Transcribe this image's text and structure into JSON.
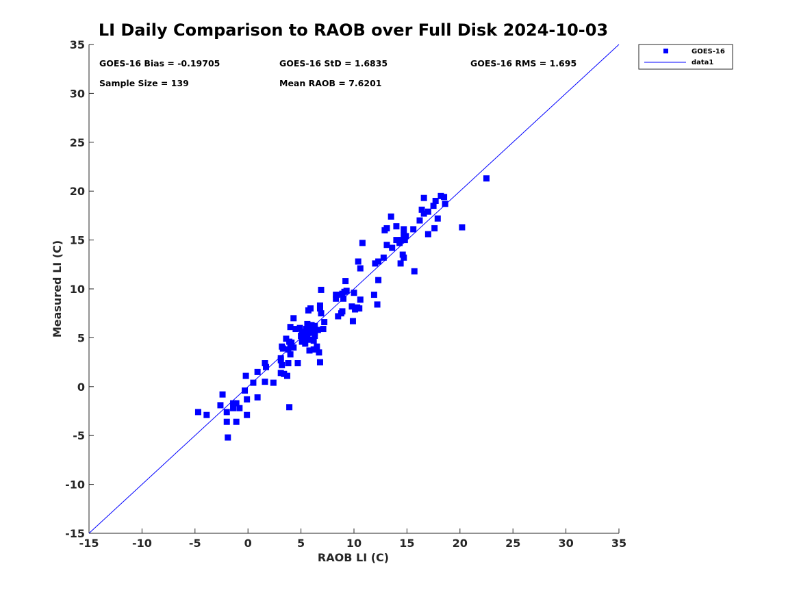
{
  "chart_data": {
    "type": "scatter",
    "title": "LI Daily Comparison to RAOB over Full Disk 2024-10-03",
    "xlabel": "RAOB LI (C)",
    "ylabel": "Measured LI (C)",
    "xlim": [
      -15,
      35
    ],
    "ylim": [
      -15,
      35
    ],
    "xticks": [
      "-15",
      "-10",
      "-5",
      "0",
      "5",
      "10",
      "15",
      "20",
      "25",
      "30",
      "35"
    ],
    "yticks": [
      "-15",
      "-10",
      "-5",
      "0",
      "5",
      "10",
      "15",
      "20",
      "25",
      "30",
      "35"
    ],
    "grid": false,
    "legend": {
      "position": "outside-top-right",
      "entries": [
        "GOES-16",
        "data1"
      ]
    },
    "stats": {
      "bias": "GOES-16 Bias = -0.19705",
      "std": "GOES-16 StD = 1.6835",
      "rms": "GOES-16 RMS = 1.695",
      "sample": "Sample Size = 139",
      "mean_raob": "Mean RAOB = 7.6201"
    },
    "colors": {
      "marker": "#0000ff",
      "line": "#0000ff",
      "axis": "#262626"
    },
    "series": [
      {
        "name": "GOES-16",
        "marker": "square",
        "points": [
          [
            -4.7,
            -2.6
          ],
          [
            -3.9,
            -2.9
          ],
          [
            -2.6,
            -1.9
          ],
          [
            -2.4,
            -0.8
          ],
          [
            -2.0,
            -2.6
          ],
          [
            -2.0,
            -3.6
          ],
          [
            -1.9,
            -5.2
          ],
          [
            -1.4,
            -1.7
          ],
          [
            -1.4,
            -2.2
          ],
          [
            -1.1,
            -1.7
          ],
          [
            -1.1,
            -3.6
          ],
          [
            -0.8,
            -2.2
          ],
          [
            -0.3,
            -0.4
          ],
          [
            -0.2,
            1.1
          ],
          [
            -0.1,
            -1.3
          ],
          [
            -0.1,
            -2.9
          ],
          [
            0.5,
            0.4
          ],
          [
            0.9,
            1.5
          ],
          [
            0.9,
            -1.1
          ],
          [
            1.6,
            0.5
          ],
          [
            1.6,
            2.4
          ],
          [
            1.7,
            2.0
          ],
          [
            2.4,
            0.4
          ],
          [
            3.1,
            1.4
          ],
          [
            3.1,
            2.7
          ],
          [
            3.1,
            2.9
          ],
          [
            3.2,
            2.2
          ],
          [
            3.2,
            4.1
          ],
          [
            3.4,
            1.3
          ],
          [
            3.6,
            4.9
          ],
          [
            3.7,
            1.1
          ],
          [
            3.8,
            3.8
          ],
          [
            3.8,
            2.4
          ],
          [
            3.9,
            4.6
          ],
          [
            3.9,
            -2.1
          ],
          [
            4.0,
            4.3
          ],
          [
            4.0,
            6.1
          ],
          [
            4.0,
            3.3
          ],
          [
            4.1,
            4.5
          ],
          [
            4.3,
            4.0
          ],
          [
            4.3,
            7.0
          ],
          [
            4.5,
            5.9
          ],
          [
            4.7,
            2.4
          ],
          [
            4.9,
            6.0
          ],
          [
            5.0,
            5.2
          ],
          [
            5.1,
            4.6
          ],
          [
            5.1,
            5.6
          ],
          [
            5.3,
            5.4
          ],
          [
            5.4,
            5.1
          ],
          [
            5.5,
            5.9
          ],
          [
            5.6,
            5.0
          ],
          [
            5.6,
            6.4
          ],
          [
            5.7,
            7.8
          ],
          [
            5.7,
            5.5
          ],
          [
            5.8,
            3.7
          ],
          [
            5.8,
            6.0
          ],
          [
            5.9,
            8.0
          ],
          [
            5.9,
            4.8
          ],
          [
            6.0,
            6.3
          ],
          [
            6.0,
            5.6
          ],
          [
            6.1,
            5.8
          ],
          [
            6.2,
            4.7
          ],
          [
            6.2,
            3.8
          ],
          [
            6.3,
            5.2
          ],
          [
            6.3,
            6.2
          ],
          [
            6.5,
            4.1
          ],
          [
            6.6,
            5.8
          ],
          [
            6.7,
            3.5
          ],
          [
            6.8,
            8.0
          ],
          [
            6.8,
            2.5
          ],
          [
            6.8,
            8.3
          ],
          [
            6.9,
            7.5
          ],
          [
            6.9,
            9.9
          ],
          [
            7.1,
            5.9
          ],
          [
            7.2,
            6.6
          ],
          [
            8.3,
            9.0
          ],
          [
            8.4,
            9.4
          ],
          [
            8.5,
            7.2
          ],
          [
            8.8,
            7.5
          ],
          [
            8.9,
            7.7
          ],
          [
            8.9,
            9.5
          ],
          [
            9.0,
            9.0
          ],
          [
            9.1,
            9.7
          ],
          [
            9.2,
            10.8
          ],
          [
            9.3,
            9.8
          ],
          [
            9.8,
            8.2
          ],
          [
            9.9,
            6.7
          ],
          [
            10.0,
            9.6
          ],
          [
            10.1,
            7.9
          ],
          [
            10.4,
            12.8
          ],
          [
            10.5,
            8.0
          ],
          [
            10.6,
            8.9
          ],
          [
            10.6,
            12.1
          ],
          [
            10.8,
            14.7
          ],
          [
            11.9,
            9.4
          ],
          [
            12.0,
            12.6
          ],
          [
            12.2,
            8.4
          ],
          [
            12.3,
            12.8
          ],
          [
            12.3,
            10.9
          ],
          [
            12.8,
            13.2
          ],
          [
            13.1,
            16.2
          ],
          [
            13.1,
            14.5
          ],
          [
            13.5,
            17.4
          ],
          [
            13.6,
            14.2
          ],
          [
            14.0,
            16.4
          ],
          [
            14.3,
            14.7
          ],
          [
            14.4,
            12.6
          ],
          [
            14.5,
            15.0
          ],
          [
            14.6,
            13.5
          ],
          [
            14.7,
            15.5
          ],
          [
            14.7,
            16.1
          ],
          [
            14.7,
            13.2
          ],
          [
            14.8,
            15.0
          ],
          [
            14.9,
            15.4
          ],
          [
            15.6,
            16.1
          ],
          [
            15.7,
            11.8
          ],
          [
            16.2,
            17.0
          ],
          [
            16.4,
            18.1
          ],
          [
            16.6,
            19.3
          ],
          [
            16.6,
            17.7
          ],
          [
            17.0,
            17.9
          ],
          [
            17.0,
            15.6
          ],
          [
            17.5,
            18.5
          ],
          [
            17.6,
            16.2
          ],
          [
            17.7,
            19.0
          ],
          [
            17.9,
            17.2
          ],
          [
            18.2,
            19.5
          ],
          [
            18.5,
            19.4
          ],
          [
            18.6,
            18.7
          ],
          [
            20.2,
            16.3
          ],
          [
            22.5,
            21.3
          ],
          [
            10.3,
            8.1
          ],
          [
            5.4,
            4.4
          ],
          [
            6.1,
            6.0
          ],
          [
            3.3,
            3.9
          ],
          [
            12.9,
            16.0
          ],
          [
            14.0,
            15.0
          ],
          [
            8.3,
            9.4
          ],
          [
            6.3,
            5.5
          ]
        ]
      },
      {
        "name": "data1",
        "type": "line",
        "x": [
          -15,
          35
        ],
        "y": [
          -15,
          35
        ]
      }
    ]
  }
}
